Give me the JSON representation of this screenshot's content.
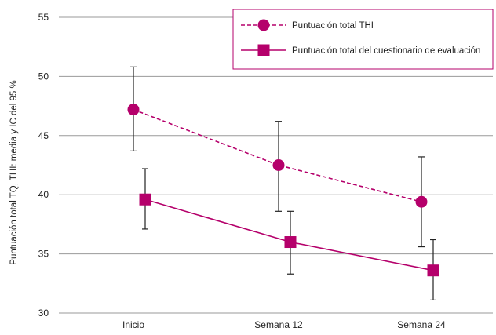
{
  "chart_data": {
    "type": "line",
    "categories": [
      "Inicio",
      "Semana 12",
      "Semana 24"
    ],
    "ylabel": "Puntuación total TQ, THI: media y IC del 95 %",
    "ylim": [
      30,
      55
    ],
    "yticks": [
      30,
      35,
      40,
      45,
      50,
      55
    ],
    "grid": true,
    "legend_position": "top-right",
    "series": [
      {
        "name": "Puntuación total THI",
        "marker": "circle",
        "line_style": "dashed",
        "color": "#B5006B",
        "values": [
          47.2,
          42.5,
          39.4
        ],
        "ci_low": [
          43.7,
          38.6,
          35.6
        ],
        "ci_high": [
          50.8,
          46.2,
          43.2
        ]
      },
      {
        "name": "Puntuación total del cuestionario de evaluación",
        "marker": "square",
        "line_style": "solid",
        "color": "#B5006B",
        "values": [
          39.6,
          36.0,
          33.6
        ],
        "ci_low": [
          37.1,
          33.3,
          31.1
        ],
        "ci_high": [
          42.2,
          38.6,
          36.2
        ]
      }
    ]
  }
}
